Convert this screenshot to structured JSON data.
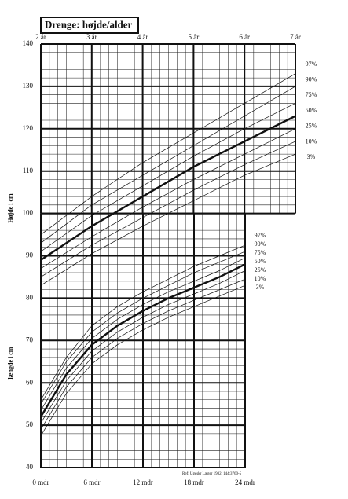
{
  "chart_data": [
    {
      "type": "line",
      "title": "Drenge: højde/alder",
      "y_label": "Højde i cm",
      "x": [
        2,
        3,
        4,
        5,
        6,
        7
      ],
      "xlim": [
        2,
        7
      ],
      "xticks": [
        {
          "value": 2,
          "label": "2 år"
        },
        {
          "value": 3,
          "label": "3 år"
        },
        {
          "value": 4,
          "label": "4 år"
        },
        {
          "value": 5,
          "label": "5 år"
        },
        {
          "value": 6,
          "label": "6 år"
        },
        {
          "value": 7,
          "label": "7 år"
        }
      ],
      "ylim": [
        40,
        140
      ],
      "yticks": [
        40,
        50,
        60,
        70,
        80,
        90,
        100,
        110,
        120,
        130,
        140
      ],
      "grid": true,
      "series": [
        {
          "name": "97%",
          "color": "#111111",
          "line_width": 0.7,
          "values": [
            95,
            104,
            112,
            119,
            126,
            133
          ]
        },
        {
          "name": "90%",
          "color": "#111111",
          "line_width": 0.7,
          "values": [
            93,
            102,
            109,
            116,
            123,
            130
          ]
        },
        {
          "name": "75%",
          "color": "#111111",
          "line_width": 0.7,
          "values": [
            91,
            99.5,
            106.5,
            113.5,
            120,
            126
          ]
        },
        {
          "name": "50%",
          "color": "#111111",
          "line_width": 2.4,
          "values": [
            89,
            97,
            104,
            111,
            117,
            123
          ]
        },
        {
          "name": "25%",
          "color": "#111111",
          "line_width": 0.7,
          "values": [
            87,
            94.5,
            101.5,
            108,
            114,
            120
          ]
        },
        {
          "name": "10%",
          "color": "#111111",
          "line_width": 0.7,
          "values": [
            85,
            92.5,
            99,
            105.5,
            111.5,
            117
          ]
        },
        {
          "name": "3%",
          "color": "#111111",
          "line_width": 0.7,
          "values": [
            83,
            90.5,
            97,
            103,
            109,
            114
          ]
        }
      ]
    },
    {
      "type": "line",
      "y_label": "længde i cm",
      "note": "Ref: Ugeskr Læger 1982, 144:3760-5",
      "x": [
        0,
        3,
        6,
        9,
        12,
        15,
        18,
        21,
        24
      ],
      "xlim": [
        0,
        24
      ],
      "xticks": [
        {
          "value": 0,
          "label": "0 mdr"
        },
        {
          "value": 6,
          "label": "6 mdr"
        },
        {
          "value": 12,
          "label": "12 mdr"
        },
        {
          "value": 18,
          "label": "18 mdr"
        },
        {
          "value": 24,
          "label": "24 mdr"
        }
      ],
      "ylim": [
        40,
        140
      ],
      "yticks": [
        40,
        50,
        60,
        70,
        80,
        90,
        100
      ],
      "grid": true,
      "series": [
        {
          "name": "97%",
          "color": "#111111",
          "line_width": 0.7,
          "values": [
            56,
            66,
            73.5,
            78,
            81.5,
            84.5,
            87.5,
            90,
            92.5
          ]
        },
        {
          "name": "90%",
          "color": "#111111",
          "line_width": 0.7,
          "values": [
            55,
            65,
            72,
            76.5,
            80,
            83,
            86,
            88.5,
            91
          ]
        },
        {
          "name": "75%",
          "color": "#111111",
          "line_width": 0.7,
          "values": [
            53.5,
            63.5,
            70.5,
            75,
            78.5,
            81.5,
            84,
            86.5,
            89.5
          ]
        },
        {
          "name": "50%",
          "color": "#111111",
          "line_width": 2.4,
          "values": [
            52,
            62,
            69,
            73.5,
            77,
            80,
            82.5,
            85,
            88
          ]
        },
        {
          "name": "25%",
          "color": "#111111",
          "line_width": 0.7,
          "values": [
            50.5,
            60.5,
            67.5,
            72,
            75.5,
            78.5,
            81,
            83.5,
            86.5
          ]
        },
        {
          "name": "10%",
          "color": "#111111",
          "line_width": 0.7,
          "values": [
            49,
            59,
            66,
            70.5,
            74,
            77,
            79.5,
            82,
            84.5
          ]
        },
        {
          "name": "3%",
          "color": "#111111",
          "line_width": 0.7,
          "values": [
            47.5,
            57.5,
            64.5,
            69,
            72.5,
            75.5,
            78,
            80.5,
            83
          ]
        }
      ]
    }
  ]
}
